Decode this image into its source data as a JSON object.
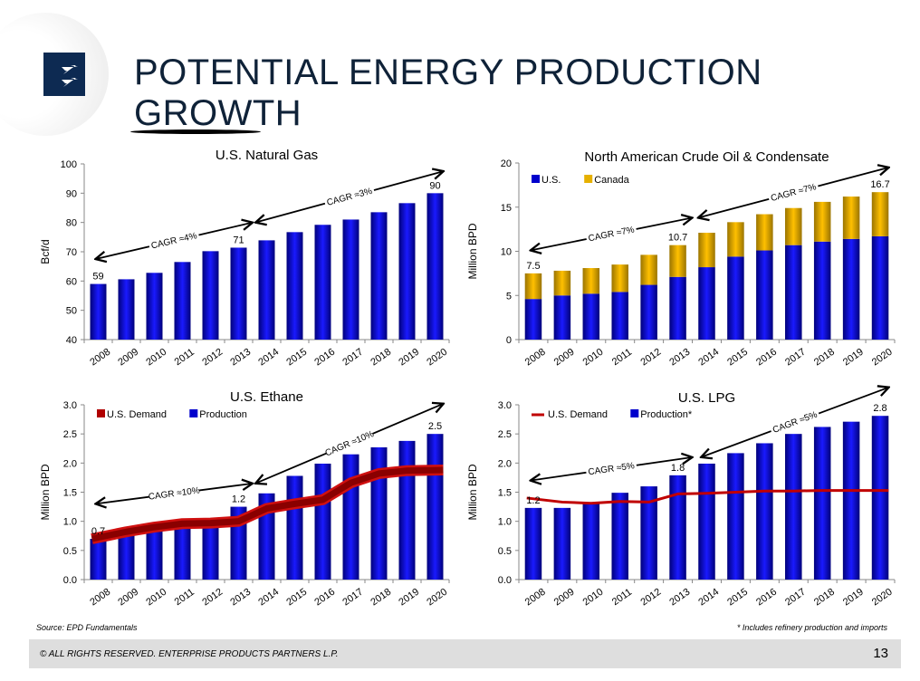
{
  "header": {
    "title": "POTENTIAL ENERGY PRODUCTION GROWTH",
    "logo": "lightning-logo-icon"
  },
  "footer": {
    "source": "Source:  EPD Fundamentals",
    "note": "* Includes  refinery production and imports",
    "copyright": "© ALL RIGHTS RESERVED. ENTERPRISE PRODUCTS PARTNERS L.P.",
    "page_number": "13"
  },
  "colors": {
    "bar_blue": "#0000cc",
    "bar_gold": "#e6b000",
    "demand_red": "#b00000",
    "axis": "#888888"
  },
  "chart_data": [
    {
      "id": "natgas",
      "type": "bar",
      "title": "U.S. Natural Gas",
      "ylabel": "Bcf/d",
      "xlabel": "",
      "ylim": [
        40,
        100
      ],
      "yticks": [
        40,
        50,
        60,
        70,
        80,
        90,
        100
      ],
      "ytick_labels": [
        "40",
        "50",
        "60",
        "70",
        "80",
        "90",
        "100"
      ],
      "categories": [
        "2008",
        "2009",
        "2010",
        "2011",
        "2012",
        "2013",
        "2014",
        "2015",
        "2016",
        "2017",
        "2018",
        "2019",
        "2020"
      ],
      "series": [
        {
          "name": "U.S. Natural Gas",
          "kind": "bar",
          "values": [
            59,
            60.6,
            62.8,
            66.5,
            70.2,
            71.4,
            73.9,
            76.7,
            79.2,
            81.0,
            83.5,
            86.6,
            90
          ]
        }
      ],
      "data_labels": [
        {
          "index": 0,
          "text": "59"
        },
        {
          "index": 5,
          "text": "71"
        },
        {
          "index": 12,
          "text": "90"
        }
      ],
      "annotations": [
        {
          "text": "CAGR ≈4%",
          "from": [
            0,
            67.5
          ],
          "to": [
            5.5,
            80
          ]
        },
        {
          "text": "CAGR ≈3%",
          "from": [
            5.6,
            80
          ],
          "to": [
            12.3,
            97.5
          ]
        }
      ],
      "legend": null,
      "grid": false
    },
    {
      "id": "crude",
      "type": "bar",
      "stacked": true,
      "title": "North American Crude Oil & Condensate",
      "ylabel": "Million BPD",
      "xlabel": "",
      "ylim": [
        0,
        20
      ],
      "yticks": [
        0,
        5,
        10,
        15,
        20
      ],
      "ytick_labels": [
        "0",
        "5",
        "10",
        "15",
        "20"
      ],
      "categories": [
        "2008",
        "2009",
        "2010",
        "2011",
        "2012",
        "2013",
        "2014",
        "2015",
        "2016",
        "2017",
        "2018",
        "2019",
        "2020"
      ],
      "series": [
        {
          "name": "U.S.",
          "kind": "bar",
          "values": [
            4.6,
            5.0,
            5.2,
            5.4,
            6.2,
            7.1,
            8.2,
            9.4,
            10.1,
            10.7,
            11.1,
            11.4,
            11.7
          ]
        },
        {
          "name": "Canada",
          "kind": "bar",
          "values": [
            2.9,
            2.8,
            2.9,
            3.1,
            3.4,
            3.6,
            3.9,
            3.9,
            4.1,
            4.2,
            4.5,
            4.8,
            5.0
          ]
        }
      ],
      "data_labels": [
        {
          "index": 0,
          "text": "7.5"
        },
        {
          "index": 5,
          "text": "10.7"
        },
        {
          "index": 12,
          "text": "16.7"
        }
      ],
      "annotations": [
        {
          "text": "CAGR ≈7%",
          "from": [
            0,
            10.1
          ],
          "to": [
            5.5,
            13.8
          ]
        },
        {
          "text": "CAGR ≈7%",
          "from": [
            5.7,
            13.8
          ],
          "to": [
            12.3,
            19.5
          ]
        }
      ],
      "legend": {
        "position": "top-left",
        "entries": [
          "U.S.",
          "Canada"
        ]
      },
      "grid": false
    },
    {
      "id": "ethane",
      "type": "bar",
      "title": "U.S. Ethane",
      "ylabel": "Million BPD",
      "xlabel": "",
      "ylim": [
        0,
        3.0
      ],
      "yticks": [
        0,
        0.5,
        1.0,
        1.5,
        2.0,
        2.5,
        3.0
      ],
      "ytick_labels": [
        "0.0",
        "0.5",
        "1.0",
        "1.5",
        "2.0",
        "2.5",
        "3.0"
      ],
      "categories": [
        "2008",
        "2009",
        "2010",
        "2011",
        "2012",
        "2013",
        "2014",
        "2015",
        "2016",
        "2017",
        "2018",
        "2019",
        "2020"
      ],
      "series": [
        {
          "name": "Production",
          "kind": "bar",
          "values": [
            0.7,
            0.79,
            0.88,
            0.94,
            0.99,
            1.25,
            1.48,
            1.78,
            1.99,
            2.15,
            2.27,
            2.38,
            2.5
          ]
        },
        {
          "name": "U.S. Demand",
          "kind": "line",
          "values": [
            0.7,
            0.82,
            0.9,
            0.96,
            0.97,
            1.0,
            1.22,
            1.3,
            1.37,
            1.66,
            1.82,
            1.87,
            1.88
          ]
        }
      ],
      "data_labels": [
        {
          "index": 0,
          "text": "0.7"
        },
        {
          "index": 5,
          "text": "1.2"
        },
        {
          "index": 12,
          "text": "2.5"
        }
      ],
      "annotations": [
        {
          "text": "CAGR ≈10%",
          "from": [
            0,
            1.3
          ],
          "to": [
            5.5,
            1.65
          ]
        },
        {
          "text": "CAGR ≈10%",
          "from": [
            5.6,
            1.65
          ],
          "to": [
            12.3,
            3.02
          ]
        }
      ],
      "legend": {
        "position": "top-left",
        "entries": [
          "U.S. Demand",
          "Production"
        ]
      },
      "grid": false
    },
    {
      "id": "lpg",
      "type": "bar",
      "title": "U.S. LPG",
      "ylabel": "Million BPD",
      "xlabel": "",
      "ylim": [
        0,
        3.0
      ],
      "yticks": [
        0,
        0.5,
        1.0,
        1.5,
        2.0,
        2.5,
        3.0
      ],
      "ytick_labels": [
        "0.0",
        "0.5",
        "1.0",
        "1.5",
        "2.0",
        "2.5",
        "3.0"
      ],
      "categories": [
        "2008",
        "2009",
        "2010",
        "2011",
        "2012",
        "2013",
        "2014",
        "2015",
        "2016",
        "2017",
        "2018",
        "2019",
        "2020"
      ],
      "series": [
        {
          "name": "Production*",
          "kind": "bar",
          "values": [
            1.23,
            1.23,
            1.3,
            1.49,
            1.6,
            1.79,
            1.99,
            2.17,
            2.34,
            2.5,
            2.62,
            2.71,
            2.81
          ]
        },
        {
          "name": "U.S. Demand",
          "kind": "line",
          "values": [
            1.4,
            1.33,
            1.31,
            1.34,
            1.33,
            1.47,
            1.48,
            1.5,
            1.52,
            1.52,
            1.53,
            1.53,
            1.53
          ]
        }
      ],
      "data_labels": [
        {
          "index": 0,
          "text": "1.2"
        },
        {
          "index": 5,
          "text": "1.8"
        },
        {
          "index": 12,
          "text": "2.8"
        }
      ],
      "annotations": [
        {
          "text": "CAGR ≈5%",
          "from": [
            0,
            1.7
          ],
          "to": [
            5.5,
            2.1
          ]
        },
        {
          "text": "CAGR ≈5%",
          "from": [
            5.8,
            2.1
          ],
          "to": [
            12.3,
            3.3
          ]
        }
      ],
      "legend": {
        "position": "top-left",
        "entries": [
          "U.S. Demand",
          "Production*"
        ]
      },
      "grid": false
    }
  ]
}
